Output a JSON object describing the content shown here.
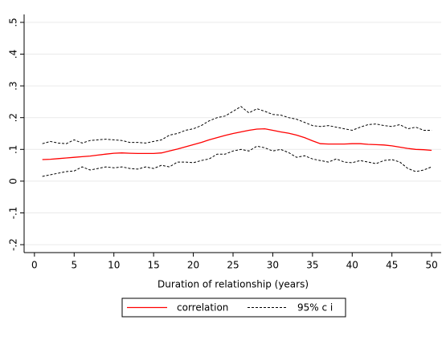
{
  "chart_data": {
    "type": "line",
    "x_label": "Duration of relationship (years)",
    "x": [
      1,
      2,
      3,
      4,
      5,
      6,
      7,
      8,
      9,
      10,
      11,
      12,
      13,
      14,
      15,
      16,
      17,
      18,
      19,
      20,
      21,
      22,
      23,
      24,
      25,
      26,
      27,
      28,
      29,
      30,
      31,
      32,
      33,
      34,
      35,
      36,
      37,
      38,
      39,
      40,
      41,
      42,
      43,
      44,
      45,
      46,
      47,
      48,
      49,
      50
    ],
    "series": [
      {
        "name": "correlation",
        "color": "#ff0000",
        "values": [
          0.068,
          0.069,
          0.071,
          0.073,
          0.075,
          0.077,
          0.079,
          0.082,
          0.085,
          0.088,
          0.089,
          0.088,
          0.087,
          0.087,
          0.087,
          0.089,
          0.095,
          0.101,
          0.108,
          0.115,
          0.122,
          0.13,
          0.137,
          0.144,
          0.15,
          0.155,
          0.16,
          0.164,
          0.165,
          0.16,
          0.155,
          0.151,
          0.145,
          0.137,
          0.127,
          0.118,
          0.117,
          0.117,
          0.117,
          0.118,
          0.118,
          0.116,
          0.115,
          0.114,
          0.111,
          0.107,
          0.103,
          0.1,
          0.099,
          0.097
        ]
      },
      {
        "name": "95% c i",
        "color": "#000000",
        "upper": [
          0.118,
          0.125,
          0.12,
          0.118,
          0.13,
          0.12,
          0.128,
          0.13,
          0.132,
          0.13,
          0.128,
          0.122,
          0.122,
          0.12,
          0.125,
          0.13,
          0.145,
          0.15,
          0.16,
          0.165,
          0.175,
          0.19,
          0.2,
          0.205,
          0.22,
          0.235,
          0.215,
          0.228,
          0.22,
          0.21,
          0.208,
          0.2,
          0.195,
          0.185,
          0.175,
          0.172,
          0.175,
          0.17,
          0.165,
          0.16,
          0.17,
          0.178,
          0.18,
          0.175,
          0.172,
          0.178,
          0.165,
          0.17,
          0.16,
          0.16
        ],
        "lower": [
          0.015,
          0.02,
          0.025,
          0.03,
          0.032,
          0.045,
          0.035,
          0.04,
          0.045,
          0.042,
          0.045,
          0.04,
          0.038,
          0.045,
          0.04,
          0.05,
          0.045,
          0.06,
          0.06,
          0.058,
          0.065,
          0.07,
          0.085,
          0.085,
          0.095,
          0.1,
          0.095,
          0.11,
          0.105,
          0.095,
          0.1,
          0.09,
          0.075,
          0.08,
          0.07,
          0.065,
          0.06,
          0.07,
          0.06,
          0.058,
          0.065,
          0.06,
          0.055,
          0.065,
          0.068,
          0.06,
          0.04,
          0.03,
          0.035,
          0.045
        ]
      }
    ],
    "xlim": [
      -1.3,
      51.2
    ],
    "xticks": [
      0,
      5,
      10,
      15,
      20,
      25,
      30,
      35,
      40,
      45,
      50
    ],
    "ylim": [
      -0.225,
      0.525
    ],
    "yticks": [
      {
        "value": -0.2,
        "label": "-.2"
      },
      {
        "value": -0.1,
        "label": "-.1"
      },
      0,
      {
        "value": 0.1,
        "label": ".1"
      },
      {
        "value": 0.2,
        "label": ".2"
      },
      {
        "value": 0.3,
        "label": ".3"
      },
      {
        "value": 0.4,
        "label": ".4"
      },
      {
        "value": 0.5,
        "label": ".5"
      }
    ],
    "grid": true
  }
}
